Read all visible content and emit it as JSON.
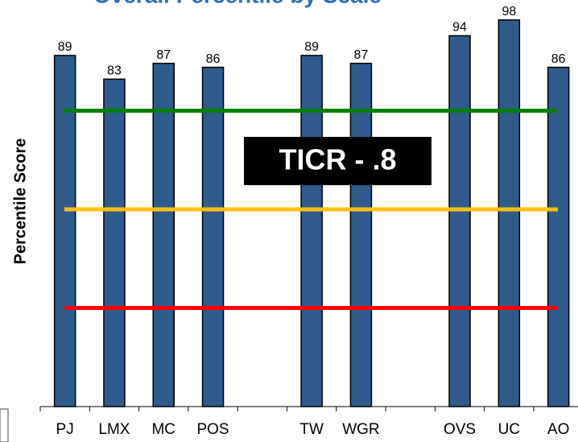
{
  "chart_data": {
    "type": "bar",
    "title": "Overall Percentile by Scale",
    "y_label": "Percentile Score",
    "categories": [
      "PJ",
      "LMX",
      "MC",
      "POS",
      null,
      "TW",
      "WGR",
      null,
      "OVS",
      "UC",
      "AO"
    ],
    "values": [
      89,
      83,
      87,
      86,
      null,
      89,
      87,
      null,
      94,
      98,
      86
    ],
    "color": "#2f5b8c",
    "ylim": [
      0,
      100
    ],
    "reference_lines": [
      {
        "value": 75,
        "color": "#008000"
      },
      {
        "value": 50,
        "color": "#ffc000"
      },
      {
        "value": 25,
        "color": "#ff0000"
      }
    ],
    "annotation": "TICR - .8"
  }
}
